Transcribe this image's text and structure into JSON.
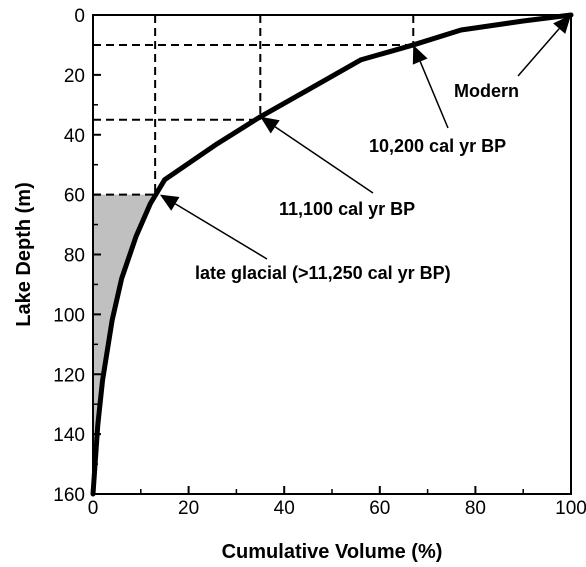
{
  "chart_data": {
    "type": "line",
    "xlabel": "Cumulative Volume (%)",
    "ylabel": "Lake Depth (m)",
    "xlim": [
      0,
      100
    ],
    "ylim": [
      0,
      160
    ],
    "y_inverted": true,
    "grid": false,
    "xticks": [
      0,
      20,
      40,
      60,
      80,
      100
    ],
    "yticks": [
      0,
      20,
      40,
      60,
      80,
      100,
      120,
      140,
      160
    ],
    "series": [
      {
        "color": "#000000",
        "points": [
          [
            100,
            0
          ],
          [
            90,
            2
          ],
          [
            77,
            5
          ],
          [
            67,
            10
          ],
          [
            56,
            15
          ],
          [
            45,
            25
          ],
          [
            35,
            34
          ],
          [
            26,
            43
          ],
          [
            15,
            55
          ],
          [
            12,
            63
          ],
          [
            9,
            74
          ],
          [
            6,
            88
          ],
          [
            4,
            102
          ],
          [
            2,
            122
          ],
          [
            1,
            137
          ],
          [
            0,
            160
          ]
        ]
      }
    ],
    "shaded_region": {
      "color": "#c0c0c0",
      "from_depth": 60,
      "to_depth": 160
    },
    "reference_lines": [
      {
        "depth": 10,
        "volume": 67
      },
      {
        "depth": 35,
        "volume": 35
      },
      {
        "depth": 60,
        "volume": 13
      }
    ],
    "annotations": [
      {
        "text": "Modern",
        "point": [
          100,
          0
        ]
      },
      {
        "text": "10,200 cal yr BP",
        "point": [
          67,
          10
        ]
      },
      {
        "text": "11,100 cal yr BP",
        "point": [
          35,
          34
        ]
      },
      {
        "text": "late glacial (>11,250 cal yr BP)",
        "point": [
          14,
          60
        ]
      }
    ]
  }
}
